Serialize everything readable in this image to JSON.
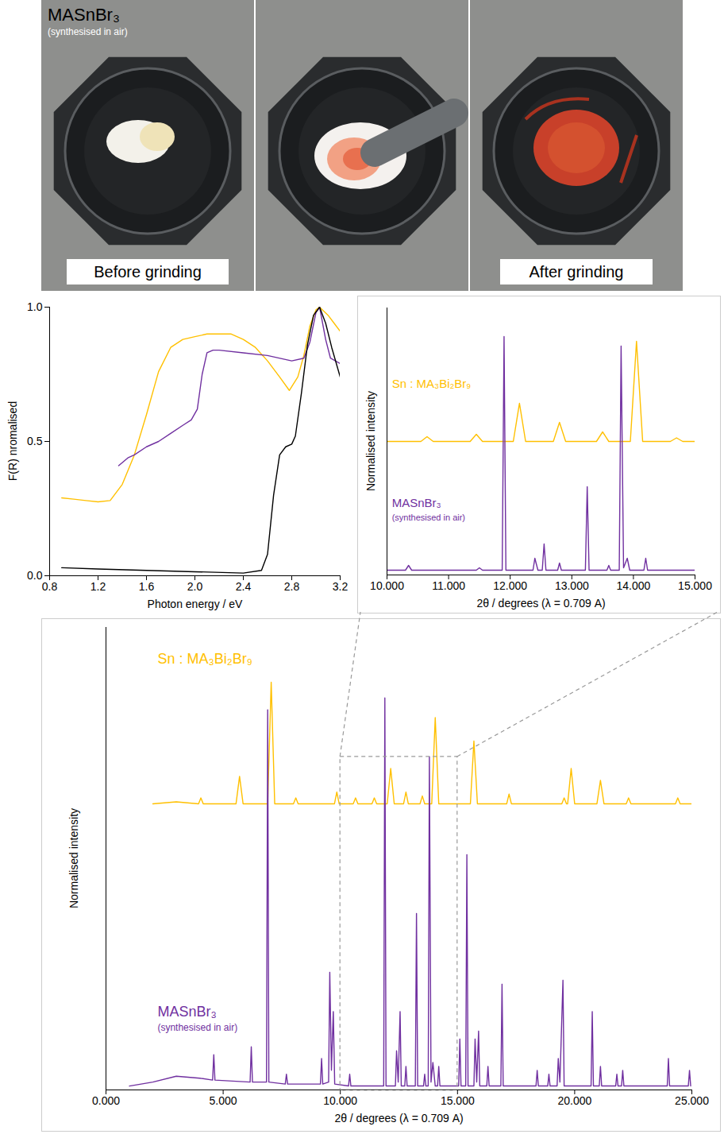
{
  "photos": {
    "title": "MASnBr₃",
    "subtitle": "(synthesised in air)",
    "panels": [
      {
        "caption": "Before grinding"
      },
      {
        "caption": null
      },
      {
        "caption": "After grinding"
      }
    ]
  },
  "chart_data": [
    {
      "type": "line",
      "xlabel": "Photon energy / eV",
      "ylabel": "F(R) nromalised",
      "xlim": [
        0.8,
        3.2
      ],
      "ylim": [
        0,
        1
      ],
      "xticks": [
        0.8,
        1.2,
        1.6,
        {
          "value": 2,
          "label": "2.0"
        },
        2.4,
        2.8,
        3.2
      ],
      "yticks": [
        {
          "value": 0,
          "label": "0.0"
        },
        0.5,
        {
          "value": 1,
          "label": "1.0"
        }
      ],
      "series": [
        {
          "color": "#ffc000",
          "x": [
            0.9,
            1.0,
            1.1,
            1.2,
            1.3,
            1.4,
            1.5,
            1.6,
            1.7,
            1.8,
            1.9,
            2.0,
            2.1,
            2.2,
            2.3,
            2.4,
            2.5,
            2.6,
            2.7,
            2.78,
            2.85,
            2.9,
            2.95,
            3.0,
            3.03,
            3.1,
            3.15,
            3.2
          ],
          "values": [
            0.29,
            0.285,
            0.28,
            0.275,
            0.28,
            0.34,
            0.45,
            0.6,
            0.76,
            0.85,
            0.88,
            0.89,
            0.9,
            0.9,
            0.9,
            0.88,
            0.85,
            0.8,
            0.74,
            0.69,
            0.74,
            0.82,
            0.93,
            0.99,
            1.0,
            0.97,
            0.94,
            0.91
          ]
        },
        {
          "color": "#7030a0",
          "x": [
            1.37,
            1.45,
            1.5,
            1.6,
            1.7,
            1.8,
            1.9,
            1.97,
            2.02,
            2.06,
            2.1,
            2.15,
            2.2,
            2.4,
            2.6,
            2.8,
            2.9,
            2.95,
            3.0,
            3.03,
            3.08,
            3.12,
            3.2
          ],
          "values": [
            0.41,
            0.44,
            0.45,
            0.48,
            0.5,
            0.53,
            0.56,
            0.58,
            0.62,
            0.75,
            0.83,
            0.84,
            0.84,
            0.83,
            0.82,
            0.8,
            0.81,
            0.87,
            0.98,
            1.0,
            0.88,
            0.81,
            0.79
          ]
        },
        {
          "color": "#000000",
          "x": [
            0.9,
            1.2,
            1.6,
            2.0,
            2.4,
            2.55,
            2.6,
            2.65,
            2.7,
            2.75,
            2.8,
            2.83,
            2.88,
            2.93,
            2.98,
            3.03,
            3.08,
            3.13,
            3.2
          ],
          "values": [
            0.03,
            0.025,
            0.02,
            0.015,
            0.01,
            0.02,
            0.08,
            0.3,
            0.45,
            0.48,
            0.49,
            0.52,
            0.68,
            0.86,
            0.97,
            1.0,
            0.94,
            0.85,
            0.74
          ]
        }
      ]
    },
    {
      "type": "line",
      "xlabel": "2θ / degrees (λ = 0.709 A)",
      "ylabel": "Normalised intensity",
      "xlim": [
        10,
        15
      ],
      "ylim": [
        0,
        1.12
      ],
      "tick_labels": "x",
      "xticks": [
        {
          "value": 10,
          "label": "10.000"
        },
        {
          "value": 11,
          "label": "11.000"
        },
        {
          "value": 12,
          "label": "12.000"
        },
        {
          "value": 13,
          "label": "13.000"
        },
        {
          "value": 14,
          "label": "14.000"
        },
        {
          "value": 15,
          "label": "15.000"
        }
      ],
      "yticks": [],
      "annotations": [
        {
          "text": "Sn : MA₃Bi₂Br₉",
          "x": 10.08,
          "y": 0.8,
          "color": "#ffc000"
        },
        {
          "text": "MASnBr₃",
          "note": "(synthesised in air)",
          "x": 10.08,
          "y": 0.3,
          "color": "#7030a0"
        }
      ],
      "series": [
        {
          "color": "#ffc000",
          "x": [
            10.0,
            10.55,
            10.65,
            10.75,
            11.35,
            11.45,
            11.55,
            12.05,
            12.15,
            12.25,
            12.7,
            12.8,
            12.9,
            13.4,
            13.5,
            13.6,
            13.95,
            14.05,
            14.15,
            14.6,
            14.7,
            14.8,
            15.0
          ],
          "values": [
            0.56,
            0.56,
            0.58,
            0.56,
            0.56,
            0.59,
            0.56,
            0.56,
            0.72,
            0.56,
            0.56,
            0.64,
            0.56,
            0.56,
            0.6,
            0.56,
            0.56,
            0.98,
            0.56,
            0.56,
            0.575,
            0.56,
            0.56
          ]
        },
        {
          "color": "#7030a0",
          "x": [
            10.0,
            10.3,
            10.35,
            10.4,
            11.45,
            11.5,
            11.55,
            11.87,
            11.9,
            11.93,
            12.37,
            12.4,
            12.45,
            12.52,
            12.55,
            12.58,
            12.77,
            12.8,
            12.83,
            13.22,
            13.25,
            13.28,
            13.57,
            13.6,
            13.63,
            13.77,
            13.8,
            13.84,
            13.9,
            13.94,
            14.17,
            14.2,
            14.23,
            15.0
          ],
          "values": [
            0.02,
            0.02,
            0.04,
            0.02,
            0.02,
            0.03,
            0.02,
            0.02,
            1.0,
            0.02,
            0.02,
            0.07,
            0.02,
            0.02,
            0.13,
            0.02,
            0.02,
            0.05,
            0.02,
            0.02,
            0.37,
            0.02,
            0.02,
            0.04,
            0.02,
            0.02,
            0.96,
            0.03,
            0.07,
            0.02,
            0.02,
            0.07,
            0.02,
            0.02
          ]
        }
      ]
    },
    {
      "type": "line",
      "xlabel": "2θ / degrees (λ = 0.709 A)",
      "ylabel": "Normalised intensity",
      "xlim": [
        0,
        25
      ],
      "ylim": [
        0,
        1.18
      ],
      "tick_labels": "x",
      "xticks": [
        {
          "value": 0,
          "label": "0.000"
        },
        {
          "value": 5,
          "label": "5.000"
        },
        {
          "value": 10,
          "label": "10.000"
        },
        {
          "value": 15,
          "label": "15.000"
        },
        {
          "value": 20,
          "label": "20.000"
        },
        {
          "value": 25,
          "label": "25.000"
        }
      ],
      "yticks": [],
      "annotations": [
        {
          "text": "Sn : MA₃Bi₂Br₉",
          "x": 2.2,
          "y": 1.1,
          "color": "#ffc000"
        },
        {
          "text": "MASnBr₃",
          "note": "(synthesised in air)",
          "x": 2.2,
          "y": 0.2,
          "color": "#7030a0"
        }
      ],
      "series": [
        {
          "color": "#ffc000",
          "x": [
            2.0,
            3.0,
            3.95,
            4.05,
            4.15,
            5.55,
            5.7,
            5.85,
            6.9,
            7.05,
            7.2,
            8.0,
            8.1,
            8.2,
            9.75,
            9.85,
            9.95,
            10.55,
            10.65,
            10.75,
            11.35,
            11.45,
            11.55,
            12.0,
            12.15,
            12.3,
            12.7,
            12.8,
            12.9,
            13.4,
            13.5,
            13.6,
            13.9,
            14.05,
            14.2,
            15.55,
            15.7,
            15.85,
            17.1,
            17.2,
            17.3,
            19.45,
            19.55,
            19.65,
            19.7,
            19.85,
            20.0,
            20.95,
            21.1,
            21.25,
            22.2,
            22.3,
            22.4,
            24.3,
            24.4,
            24.5,
            25.0
          ],
          "values": [
            0.73,
            0.735,
            0.73,
            0.745,
            0.73,
            0.73,
            0.8,
            0.73,
            0.73,
            1.04,
            0.73,
            0.73,
            0.745,
            0.73,
            0.73,
            0.76,
            0.73,
            0.73,
            0.745,
            0.73,
            0.73,
            0.745,
            0.73,
            0.73,
            0.82,
            0.73,
            0.73,
            0.76,
            0.73,
            0.73,
            0.75,
            0.73,
            0.73,
            0.95,
            0.73,
            0.73,
            0.89,
            0.73,
            0.73,
            0.755,
            0.73,
            0.73,
            0.745,
            0.73,
            0.73,
            0.82,
            0.73,
            0.73,
            0.79,
            0.73,
            0.73,
            0.745,
            0.73,
            0.73,
            0.745,
            0.73,
            0.73
          ]
        },
        {
          "color": "#7030a0",
          "x": [
            1.0,
            2.0,
            3.0,
            4.0,
            4.55,
            4.6,
            4.65,
            6.15,
            6.2,
            6.25,
            6.85,
            6.9,
            6.95,
            7.65,
            7.7,
            7.75,
            9.15,
            9.2,
            9.25,
            9.5,
            9.55,
            9.62,
            9.7,
            9.76,
            10.35,
            10.4,
            10.45,
            11.85,
            11.9,
            11.95,
            12.35,
            12.4,
            12.47,
            12.55,
            12.6,
            12.75,
            12.8,
            12.85,
            13.2,
            13.25,
            13.3,
            13.55,
            13.6,
            13.65,
            13.75,
            13.8,
            13.87,
            13.95,
            14.05,
            14.15,
            14.2,
            14.25,
            15.05,
            15.1,
            15.15,
            15.35,
            15.4,
            15.45,
            15.7,
            15.75,
            15.82,
            15.9,
            15.95,
            16.25,
            16.3,
            16.35,
            16.85,
            16.9,
            16.95,
            18.35,
            18.4,
            18.45,
            18.85,
            18.9,
            18.95,
            19.25,
            19.3,
            19.37,
            19.5,
            19.55,
            20.7,
            20.75,
            20.8,
            21.05,
            21.1,
            21.15,
            21.75,
            21.8,
            21.85,
            22.0,
            22.05,
            22.1,
            23.95,
            24.0,
            24.05,
            24.85,
            24.9,
            24.95
          ],
          "values": [
            0.01,
            0.02,
            0.035,
            0.03,
            0.025,
            0.09,
            0.025,
            0.02,
            0.11,
            0.02,
            0.02,
            0.97,
            0.02,
            0.015,
            0.04,
            0.015,
            0.015,
            0.08,
            0.015,
            0.02,
            0.3,
            0.05,
            0.2,
            0.015,
            0.01,
            0.04,
            0.01,
            0.01,
            1.0,
            0.01,
            0.01,
            0.1,
            0.02,
            0.2,
            0.01,
            0.01,
            0.06,
            0.01,
            0.01,
            0.45,
            0.01,
            0.01,
            0.04,
            0.01,
            0.01,
            0.85,
            0.02,
            0.07,
            0.01,
            0.01,
            0.06,
            0.01,
            0.01,
            0.13,
            0.01,
            0.01,
            0.6,
            0.01,
            0.01,
            0.13,
            0.02,
            0.15,
            0.01,
            0.01,
            0.06,
            0.01,
            0.01,
            0.27,
            0.01,
            0.01,
            0.05,
            0.01,
            0.01,
            0.04,
            0.01,
            0.01,
            0.08,
            0.02,
            0.28,
            0.01,
            0.01,
            0.2,
            0.01,
            0.01,
            0.06,
            0.01,
            0.01,
            0.04,
            0.01,
            0.01,
            0.05,
            0.01,
            0.01,
            0.08,
            0.01,
            0.01,
            0.05,
            0.01
          ]
        }
      ]
    }
  ]
}
